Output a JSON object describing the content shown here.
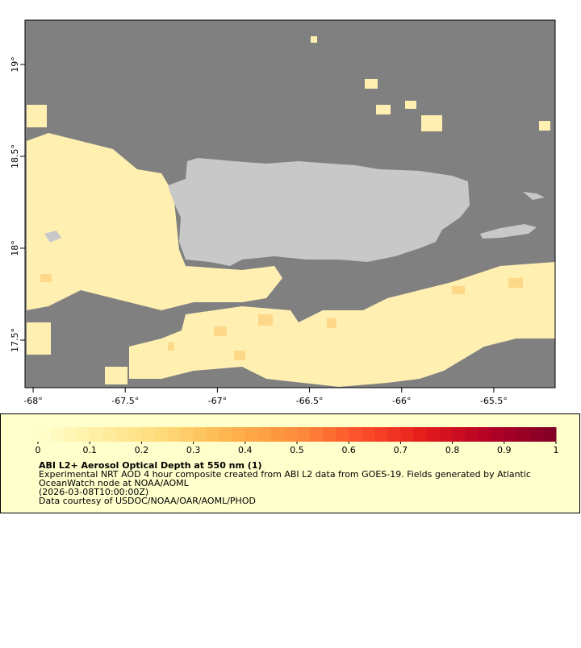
{
  "map": {
    "xlim": [
      -68.044,
      -65.167
    ],
    "ylim": [
      17.241,
      19.241
    ],
    "xticks": [
      {
        "value": -68,
        "label": "-68°"
      },
      {
        "value": -67.5,
        "label": "-67.5°"
      },
      {
        "value": -67,
        "label": "-67°"
      },
      {
        "value": -66.5,
        "label": "-66.5°"
      },
      {
        "value": -66,
        "label": "-66°"
      },
      {
        "value": -65.5,
        "label": "-65.5°"
      }
    ],
    "yticks": [
      {
        "value": 17.5,
        "label": "17.5°"
      },
      {
        "value": 18,
        "label": "18°"
      },
      {
        "value": 18.5,
        "label": "18.5°"
      },
      {
        "value": 19,
        "label": "19°"
      }
    ]
  },
  "colorbar": {
    "lim": [
      0,
      1
    ],
    "ticks": [
      0,
      0.1,
      0.2,
      0.3,
      0.4,
      0.5,
      0.6,
      0.7,
      0.8,
      0.9,
      1
    ],
    "colors": [
      "#ffffcc",
      "#ffeda0",
      "#fed976",
      "#feb24c",
      "#fd8d3c",
      "#fc4e2a",
      "#e31a1c",
      "#b10026",
      "#800026"
    ]
  },
  "legend": {
    "title": "ABI L2+ Aerosol Optical Depth at 550 nm (1)",
    "lines": [
      "Experimental NRT AOD 4 hour composite created from ABI L2 data from GOES-19. Fields generated by Atlantic",
      "OceanWatch node at NOAA/AOML",
      "(2026-03-08T10:00:00Z)",
      "Data courtesy of USDOC/NOAA/OAR/AOML/PHOD"
    ]
  }
}
